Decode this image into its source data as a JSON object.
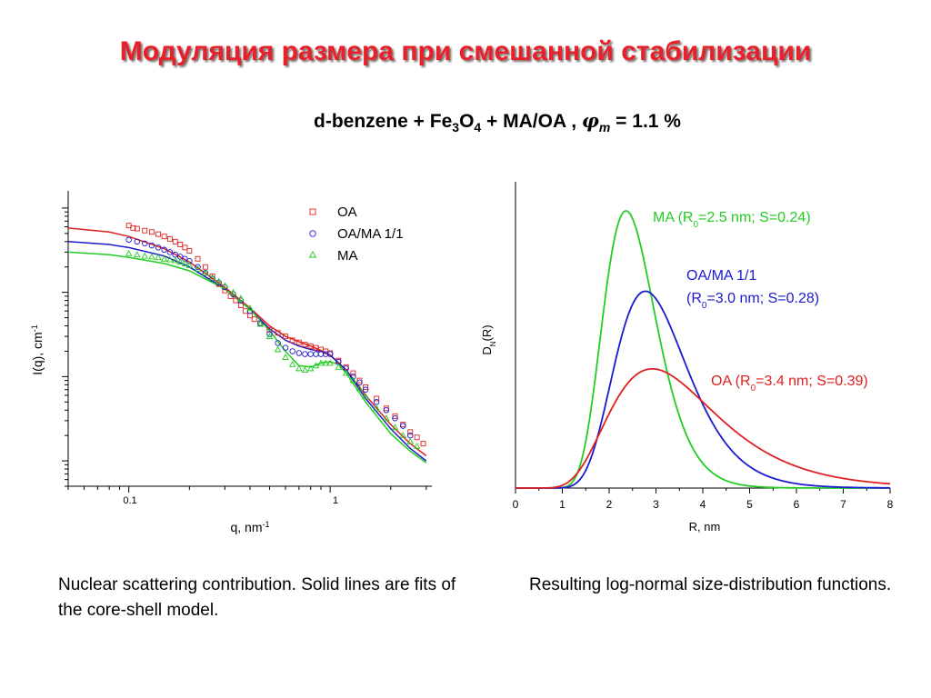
{
  "slide": {
    "title": "Модуляция размера при смешанной стабилизации",
    "subtitle": {
      "prefix": "d-benzene + Fe",
      "sub1": "3",
      "mid": "O",
      "sub2": "4",
      "suffix": " + MA/OA , ",
      "phi": "φ",
      "phi_sub": "m",
      "value": " = 1.1 %"
    },
    "caption_left": "Nuclear scattering contribution. Solid lines are fits of the core-shell model.",
    "caption_right": "Resulting log-normal size-distribution functions."
  },
  "colors": {
    "title": "#e8202a",
    "oa": "#e02020",
    "oama": "#1a1ad0",
    "ma": "#22cc22"
  },
  "chart_data": [
    {
      "type": "scatter",
      "x_scale": "log",
      "y_scale": "log",
      "xlabel": "q, nm",
      "xlabel_sup": "-1",
      "ylabel": "I(q), cm",
      "ylabel_sup": "-1",
      "x_ticks": [
        "0.1",
        "1"
      ],
      "legend": [
        "OA",
        "OA/MA 1/1",
        "MA"
      ],
      "legend_position": "top-right",
      "series": [
        {
          "name": "OA",
          "marker": "square",
          "fit": [
            [
              0.05,
              58
            ],
            [
              0.08,
              52
            ],
            [
              0.1,
              46
            ],
            [
              0.15,
              33
            ],
            [
              0.2,
              23
            ],
            [
              0.3,
              11.5
            ],
            [
              0.4,
              6.5
            ],
            [
              0.5,
              4
            ],
            [
              0.6,
              3
            ],
            [
              0.7,
              2.6
            ],
            [
              0.8,
              2.3
            ],
            [
              0.9,
              2.05
            ],
            [
              1.0,
              1.8
            ],
            [
              1.2,
              1.2
            ],
            [
              1.5,
              0.6
            ],
            [
              2,
              0.27
            ],
            [
              2.5,
              0.16
            ],
            [
              3,
              0.115
            ]
          ],
          "points": [
            [
              0.1,
              62
            ],
            [
              0.105,
              58
            ],
            [
              0.11,
              57
            ],
            [
              0.12,
              54
            ],
            [
              0.13,
              52
            ],
            [
              0.14,
              49
            ],
            [
              0.15,
              46
            ],
            [
              0.16,
              43
            ],
            [
              0.17,
              40
            ],
            [
              0.18,
              37
            ],
            [
              0.19,
              34
            ],
            [
              0.2,
              31
            ],
            [
              0.22,
              25
            ],
            [
              0.24,
              20
            ],
            [
              0.26,
              15.5
            ],
            [
              0.28,
              12.5
            ],
            [
              0.3,
              10.5
            ],
            [
              0.32,
              9
            ],
            [
              0.34,
              8
            ],
            [
              0.36,
              7
            ],
            [
              0.38,
              6
            ],
            [
              0.4,
              5.3
            ],
            [
              0.42,
              4.8
            ],
            [
              0.45,
              4.3
            ],
            [
              0.5,
              3.6
            ],
            [
              0.55,
              3.3
            ],
            [
              0.6,
              3.0
            ],
            [
              0.65,
              2.7
            ],
            [
              0.7,
              2.55
            ],
            [
              0.75,
              2.4
            ],
            [
              0.8,
              2.3
            ],
            [
              0.85,
              2.2
            ],
            [
              0.9,
              2.1
            ],
            [
              0.95,
              2.0
            ],
            [
              1.0,
              1.9
            ],
            [
              1.1,
              1.55
            ],
            [
              1.2,
              1.3
            ],
            [
              1.3,
              1.1
            ],
            [
              1.4,
              0.9
            ],
            [
              1.5,
              0.75
            ],
            [
              1.7,
              0.55
            ],
            [
              1.9,
              0.42
            ],
            [
              2.1,
              0.34
            ],
            [
              2.3,
              0.27
            ],
            [
              2.5,
              0.22
            ],
            [
              2.7,
              0.19
            ],
            [
              2.9,
              0.16
            ]
          ]
        },
        {
          "name": "OA/MA 1/1",
          "marker": "circle",
          "fit": [
            [
              0.05,
              40
            ],
            [
              0.08,
              37
            ],
            [
              0.1,
              34
            ],
            [
              0.15,
              27
            ],
            [
              0.2,
              20
            ],
            [
              0.3,
              11
            ],
            [
              0.4,
              6.3
            ],
            [
              0.5,
              3.7
            ],
            [
              0.6,
              2.7
            ],
            [
              0.7,
              2.3
            ],
            [
              0.8,
              2.1
            ],
            [
              0.9,
              2.0
            ],
            [
              1.0,
              1.8
            ],
            [
              1.2,
              1.2
            ],
            [
              1.5,
              0.55
            ],
            [
              2,
              0.24
            ],
            [
              2.5,
              0.14
            ],
            [
              3,
              0.1
            ]
          ],
          "points": [
            [
              0.1,
              42
            ],
            [
              0.11,
              40
            ],
            [
              0.12,
              38
            ],
            [
              0.13,
              36
            ],
            [
              0.14,
              34
            ],
            [
              0.15,
              32
            ],
            [
              0.16,
              30
            ],
            [
              0.17,
              28
            ],
            [
              0.18,
              26.5
            ],
            [
              0.19,
              25
            ],
            [
              0.2,
              23.5
            ],
            [
              0.22,
              20
            ],
            [
              0.24,
              17
            ],
            [
              0.26,
              14.5
            ],
            [
              0.28,
              13
            ],
            [
              0.3,
              11.5
            ],
            [
              0.33,
              9.5
            ],
            [
              0.36,
              8
            ],
            [
              0.4,
              6
            ],
            [
              0.45,
              4.3
            ],
            [
              0.5,
              3.2
            ],
            [
              0.55,
              2.5
            ],
            [
              0.6,
              2.2
            ],
            [
              0.65,
              2.0
            ],
            [
              0.7,
              1.9
            ],
            [
              0.75,
              1.85
            ],
            [
              0.8,
              1.85
            ],
            [
              0.85,
              1.85
            ],
            [
              0.9,
              1.85
            ],
            [
              0.95,
              1.85
            ],
            [
              1.0,
              1.85
            ],
            [
              1.1,
              1.5
            ],
            [
              1.2,
              1.25
            ],
            [
              1.3,
              1.0
            ],
            [
              1.4,
              0.85
            ],
            [
              1.5,
              0.7
            ],
            [
              1.7,
              0.5
            ],
            [
              1.9,
              0.4
            ],
            [
              2.1,
              0.32
            ],
            [
              2.3,
              0.26
            ],
            [
              2.5,
              0.2
            ]
          ]
        },
        {
          "name": "MA",
          "marker": "triangle",
          "fit": [
            [
              0.05,
              30
            ],
            [
              0.08,
              28
            ],
            [
              0.1,
              26
            ],
            [
              0.15,
              22
            ],
            [
              0.2,
              18
            ],
            [
              0.3,
              11
            ],
            [
              0.4,
              6.3
            ],
            [
              0.5,
              3.5
            ],
            [
              0.6,
              2.0
            ],
            [
              0.7,
              1.35
            ],
            [
              0.8,
              1.3
            ],
            [
              0.9,
              1.45
            ],
            [
              1.0,
              1.5
            ],
            [
              1.1,
              1.4
            ],
            [
              1.2,
              1.1
            ],
            [
              1.5,
              0.5
            ],
            [
              2,
              0.21
            ],
            [
              2.5,
              0.13
            ],
            [
              3,
              0.095
            ]
          ],
          "points": [
            [
              0.1,
              29
            ],
            [
              0.11,
              28
            ],
            [
              0.12,
              27
            ],
            [
              0.13,
              26.5
            ],
            [
              0.14,
              26
            ],
            [
              0.15,
              25
            ],
            [
              0.16,
              24.5
            ],
            [
              0.17,
              24
            ],
            [
              0.18,
              23
            ],
            [
              0.19,
              22
            ],
            [
              0.2,
              21
            ],
            [
              0.22,
              19
            ],
            [
              0.24,
              17
            ],
            [
              0.26,
              15
            ],
            [
              0.28,
              13.5
            ],
            [
              0.3,
              12
            ],
            [
              0.33,
              10
            ],
            [
              0.36,
              8.5
            ],
            [
              0.4,
              6.5
            ],
            [
              0.45,
              4.2
            ],
            [
              0.5,
              3.0
            ],
            [
              0.55,
              2.1
            ],
            [
              0.6,
              1.7
            ],
            [
              0.65,
              1.4
            ],
            [
              0.7,
              1.25
            ],
            [
              0.75,
              1.2
            ],
            [
              0.8,
              1.25
            ],
            [
              0.85,
              1.35
            ],
            [
              0.9,
              1.45
            ],
            [
              0.95,
              1.45
            ],
            [
              1.0,
              1.45
            ],
            [
              1.1,
              1.3
            ],
            [
              1.2,
              1.1
            ],
            [
              1.3,
              0.9
            ],
            [
              1.4,
              0.72
            ],
            [
              1.5,
              0.58
            ],
            [
              1.7,
              0.42
            ],
            [
              1.9,
              0.32
            ],
            [
              2.1,
              0.25
            ],
            [
              2.3,
              0.2
            ],
            [
              2.5,
              0.17
            ],
            [
              2.7,
              0.15
            ]
          ]
        }
      ]
    },
    {
      "type": "line",
      "xlabel": "R, nm",
      "ylabel": "D",
      "ylabel_sub": "N",
      "ylabel_suffix": "(R)",
      "xlim": [
        0,
        8
      ],
      "x_ticks": [
        0,
        1,
        2,
        3,
        4,
        5,
        6,
        7,
        8
      ],
      "series": [
        {
          "name": "MA",
          "label_main": "MA (R",
          "label_sub": "0",
          "label_rest": "=2.5 nm; S=0.24)",
          "R0": 2.5,
          "S": 0.24,
          "peak": 1.0
        },
        {
          "name": "OA/MA 1/1",
          "label_line1": "OA/MA 1/1",
          "label_main": "(R",
          "label_sub": "0",
          "label_rest": "=3.0 nm; S=0.28)",
          "R0": 3.0,
          "S": 0.28,
          "peak": 0.71
        },
        {
          "name": "OA",
          "label_main": "OA (R",
          "label_sub": "0",
          "label_rest": "=3.4 nm; S=0.39)",
          "R0": 3.4,
          "S": 0.39,
          "peak": 0.43
        }
      ]
    }
  ]
}
